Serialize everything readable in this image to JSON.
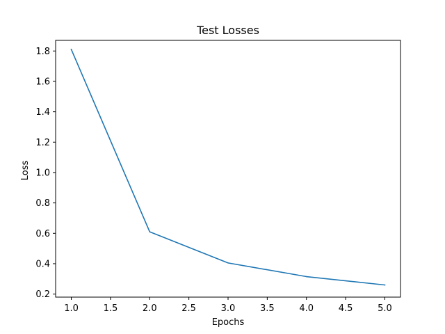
{
  "chart_data": {
    "type": "line",
    "title": "Test Losses",
    "xlabel": "Epochs",
    "ylabel": "Loss",
    "xlim": [
      0.8,
      5.2
    ],
    "ylim": [
      0.18,
      1.87
    ],
    "xticks": [
      "1.0",
      "1.5",
      "2.0",
      "2.5",
      "3.0",
      "3.5",
      "4.0",
      "4.5",
      "5.0"
    ],
    "yticks": [
      "0.2",
      "0.4",
      "0.6",
      "0.8",
      "1.0",
      "1.2",
      "1.4",
      "1.6",
      "1.8"
    ],
    "grid": false,
    "series": [
      {
        "color": "#1f77b4",
        "x": [
          1,
          2,
          3,
          4,
          5
        ],
        "y": [
          1.81,
          0.61,
          0.405,
          0.315,
          0.26
        ]
      }
    ]
  }
}
